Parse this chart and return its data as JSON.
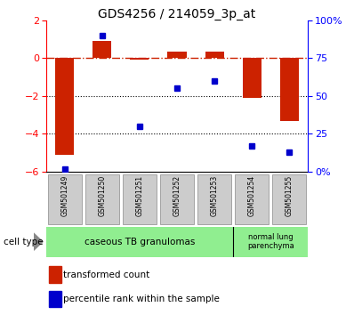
{
  "title": "GDS4256 / 214059_3p_at",
  "samples": [
    "GSM501249",
    "GSM501250",
    "GSM501251",
    "GSM501252",
    "GSM501253",
    "GSM501254",
    "GSM501255"
  ],
  "transformed_count": [
    -5.1,
    0.9,
    -0.05,
    0.35,
    0.35,
    -2.1,
    -3.3
  ],
  "percentile_rank": [
    2.0,
    90.0,
    30.0,
    55.0,
    60.0,
    17.0,
    13.0
  ],
  "ylim_left": [
    -6,
    2
  ],
  "ylim_right": [
    0,
    100
  ],
  "yticks_left": [
    -6,
    -4,
    -2,
    0,
    2
  ],
  "yticks_right": [
    0,
    25,
    50,
    75,
    100
  ],
  "ytick_labels_right": [
    "0%",
    "25",
    "50",
    "75",
    "100%"
  ],
  "bar_color_red": "#CC2200",
  "bar_color_blue": "#0000CC",
  "dotted_lines": [
    -2,
    -4
  ],
  "legend_red_label": "transformed count",
  "legend_blue_label": "percentile rank within the sample",
  "bar_width": 0.5,
  "cell_type_label": "cell type",
  "caseous_label": "caseous TB granulomas",
  "normal_label": "normal lung\nparenchyma",
  "cell_color": "#90EE90",
  "xticklabel_bg": "#CCCCCC",
  "fig_bg": "#FFFFFF"
}
